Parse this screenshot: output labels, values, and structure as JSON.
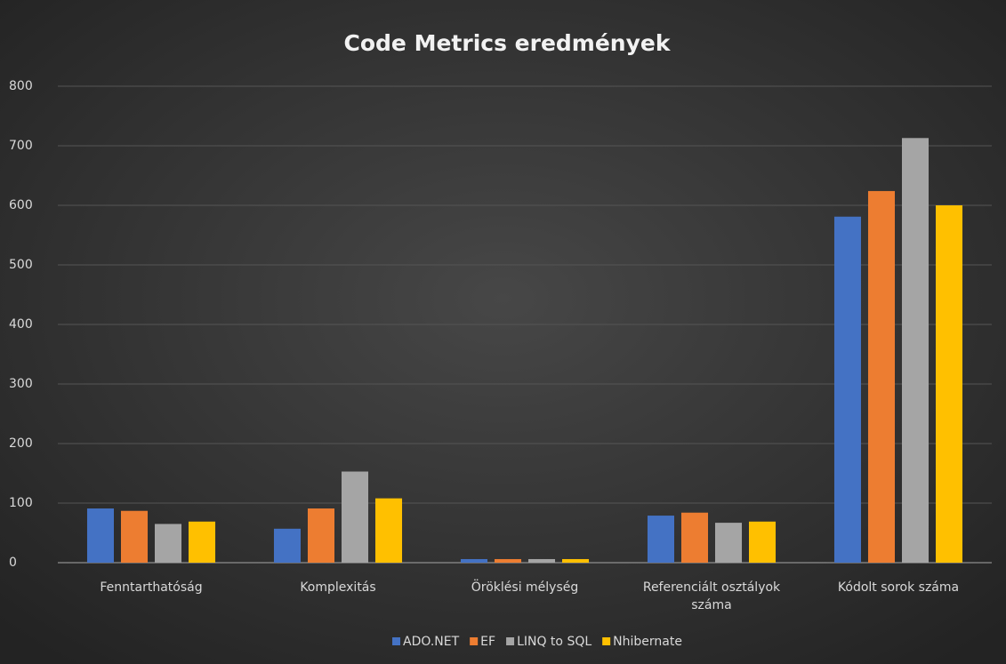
{
  "chart_data": {
    "type": "bar",
    "title": "Code Metrics eredmények",
    "categories": [
      "Fenntarthatóság",
      "Komplexitás",
      "Öröklési mélység",
      "Referenciált osztályok száma",
      "Kódolt sorok száma"
    ],
    "series": [
      {
        "name": "ADO.NET",
        "color": "#4472c4",
        "values": [
          91,
          57,
          6,
          79,
          581
        ]
      },
      {
        "name": "EF",
        "color": "#ed7d31",
        "values": [
          87,
          91,
          6,
          84,
          624
        ]
      },
      {
        "name": "LINQ to SQL",
        "color": "#a5a5a5",
        "values": [
          65,
          153,
          6,
          67,
          713
        ]
      },
      {
        "name": "Nhibernate",
        "color": "#ffc000",
        "values": [
          69,
          108,
          6,
          69,
          600
        ]
      }
    ],
    "ylim": [
      0,
      800
    ],
    "yticks": [
      0,
      100,
      200,
      300,
      400,
      500,
      600,
      700,
      800
    ],
    "grid": true,
    "legend": "bottom"
  }
}
